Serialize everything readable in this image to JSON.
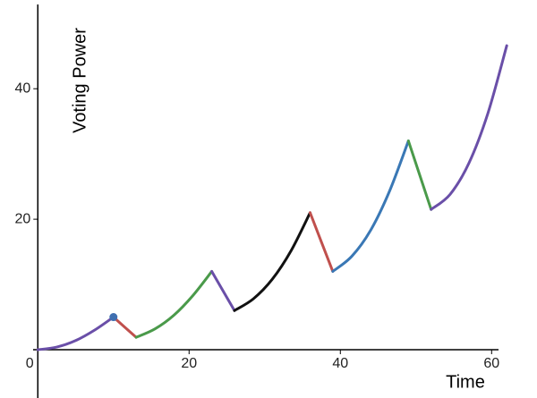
{
  "chart_data": {
    "type": "line",
    "x_label": "Time",
    "y_label": "Voting Power",
    "xlim": [
      -5,
      66
    ],
    "ylim": [
      -7.4,
      53.6
    ],
    "xticks": [
      0,
      20,
      40,
      60
    ],
    "yticks": [
      20,
      40
    ],
    "highlight": {
      "x": 10,
      "y": 5,
      "color": "#3f6fb0"
    },
    "series": [
      {
        "color": "#6a4fa8",
        "x": [
          0,
          2.5,
          5,
          7.5,
          10
        ],
        "values": [
          0,
          0.4,
          1.4,
          3,
          5
        ]
      },
      {
        "color": "#c0504d",
        "x": [
          10,
          13
        ],
        "values": [
          5,
          1.9
        ]
      },
      {
        "color": "#4a9a4a",
        "x": [
          13,
          15.5,
          18,
          20.5,
          23
        ],
        "values": [
          1.9,
          3.2,
          5.3,
          8.3,
          12
        ]
      },
      {
        "color": "#6a4fa8",
        "x": [
          23,
          26
        ],
        "values": [
          12,
          6
        ]
      },
      {
        "color": "#111111",
        "x": [
          26,
          28.5,
          31,
          33.5,
          36
        ],
        "values": [
          6,
          7.8,
          10.8,
          15.2,
          21
        ]
      },
      {
        "color": "#c0504d",
        "x": [
          36,
          39
        ],
        "values": [
          21,
          12
        ]
      },
      {
        "color": "#3a78b5",
        "x": [
          39,
          41.5,
          44,
          46.5,
          49
        ],
        "values": [
          12,
          14.3,
          18.3,
          24.3,
          32
        ]
      },
      {
        "color": "#4a9a4a",
        "x": [
          49,
          52
        ],
        "values": [
          32,
          21.5
        ]
      },
      {
        "color": "#6a4fa8",
        "x": [
          52,
          54.5,
          57,
          59.5,
          62
        ],
        "values": [
          21.5,
          23.8,
          28.6,
          36.2,
          46.6
        ]
      }
    ]
  }
}
